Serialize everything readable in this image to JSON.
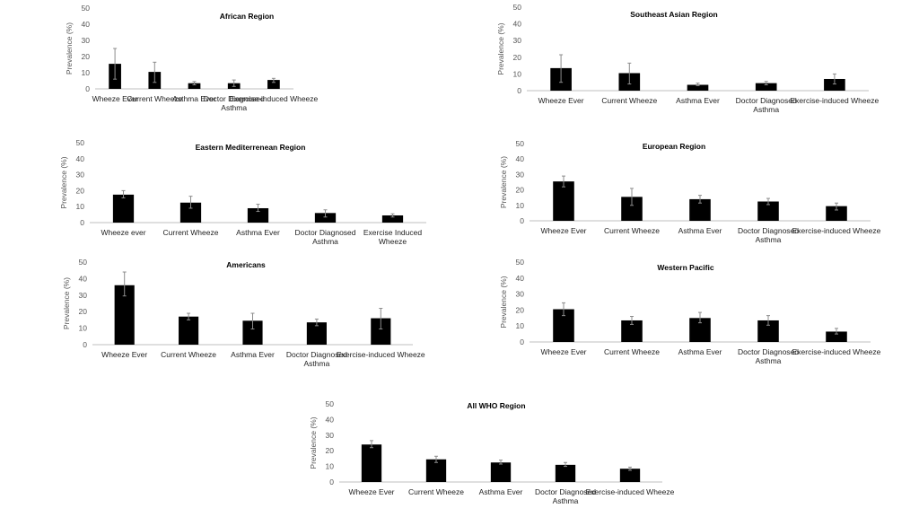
{
  "chart_data": [
    {
      "type": "bar",
      "title": "African Region",
      "ylabel": "Prevalence (%)",
      "xlabel": "",
      "ylim": [
        0,
        50
      ],
      "yticks": [
        "0",
        "10",
        "20",
        "30",
        "40",
        "50"
      ],
      "categories": [
        "Wheeze Ever",
        "Current Wheeze",
        "Asthma Ever",
        "Doctor Diagnosed Asthma",
        "Exercise-induced Wheeze"
      ],
      "values": [
        15.5,
        10.5,
        3.5,
        3.5,
        5.5
      ],
      "error_low": [
        6,
        4,
        2.5,
        1.5,
        4
      ],
      "error_high": [
        25,
        16.5,
        4.5,
        5.5,
        6.5
      ],
      "grid": false,
      "bar_color": "#000000"
    },
    {
      "type": "bar",
      "title": "Southeast Asian Region",
      "ylabel": "Prevalence (%)",
      "xlabel": "",
      "ylim": [
        0,
        50
      ],
      "yticks": [
        "0",
        "10",
        "20",
        "30",
        "40",
        "50"
      ],
      "categories": [
        "Wheeze Ever",
        "Current Wheeze",
        "Asthma Ever",
        "Doctor Diagnosed Asthma",
        "Exercise-induced Wheeze"
      ],
      "values": [
        13.5,
        10.5,
        3.5,
        4.5,
        7
      ],
      "error_low": [
        5,
        4,
        3,
        3.5,
        4
      ],
      "error_high": [
        21.5,
        16.5,
        4.5,
        5.5,
        10
      ],
      "grid": false,
      "bar_color": "#000000"
    },
    {
      "type": "bar",
      "title": "Eastern Mediterrenean Region",
      "ylabel": "Prevalence (%)",
      "xlabel": "",
      "ylim": [
        0,
        50
      ],
      "yticks": [
        "0",
        "10",
        "20",
        "30",
        "40",
        "50"
      ],
      "categories": [
        "Wheeze ever",
        "Current Wheeze",
        "Asthma Ever",
        "Doctor Diagnosed Asthma",
        "Exercise Induced Wheeze"
      ],
      "values": [
        17.5,
        12.5,
        9,
        6,
        4.5
      ],
      "error_low": [
        15.5,
        9,
        7,
        3.5,
        3.5
      ],
      "error_high": [
        20,
        16.5,
        11.5,
        8,
        5.5
      ],
      "grid": false,
      "bar_color": "#000000"
    },
    {
      "type": "bar",
      "title": "European Region",
      "ylabel": "Prevalence (%)",
      "xlabel": "",
      "ylim": [
        0,
        50
      ],
      "yticks": [
        "0",
        "10",
        "20",
        "30",
        "40",
        "50"
      ],
      "categories": [
        "Wheeze Ever",
        "Current Wheeze",
        "Asthma Ever",
        "Doctor Diagnosed Asthma",
        "Exercise-induced Wheeze"
      ],
      "values": [
        25.5,
        15.5,
        14,
        12.5,
        9.5
      ],
      "error_low": [
        22,
        10,
        11.5,
        10.5,
        7
      ],
      "error_high": [
        29,
        21,
        16.5,
        14.5,
        11.5
      ],
      "grid": false,
      "bar_color": "#000000"
    },
    {
      "type": "bar",
      "title": "Americans",
      "ylabel": "Prevalence (%)",
      "xlabel": "",
      "ylim": [
        0,
        50
      ],
      "yticks": [
        "0",
        "10",
        "20",
        "30",
        "40",
        "50"
      ],
      "categories": [
        "Wheeze Ever",
        "Current Wheeze",
        "Asthma Ever",
        "Doctor Diagnosed Asthma",
        "Exercise-induced Wheeze"
      ],
      "values": [
        36,
        17,
        14.5,
        13.5,
        16
      ],
      "error_low": [
        29.5,
        15,
        9.5,
        11.5,
        9.5
      ],
      "error_high": [
        44,
        19,
        19,
        15.5,
        22
      ],
      "grid": false,
      "bar_color": "#000000"
    },
    {
      "type": "bar",
      "title": "Western Pacific",
      "ylabel": "Prevalence (%)",
      "xlabel": "",
      "ylim": [
        0,
        50
      ],
      "yticks": [
        "0",
        "10",
        "20",
        "30",
        "40",
        "50"
      ],
      "categories": [
        "Wheeze Ever",
        "Current Wheeze",
        "Asthma Ever",
        "Doctor Diagnosed Asthma",
        "Exercise-induced Wheeze"
      ],
      "values": [
        20.5,
        13.5,
        15,
        13.5,
        6.5
      ],
      "error_low": [
        16.5,
        11,
        12,
        10.5,
        5
      ],
      "error_high": [
        24.5,
        16,
        18.5,
        16.5,
        8.5
      ],
      "grid": false,
      "bar_color": "#000000"
    },
    {
      "type": "bar",
      "title": "All WHO Region",
      "ylabel": "Prevalence (%)",
      "xlabel": "",
      "ylim": [
        0,
        50
      ],
      "yticks": [
        "0",
        "10",
        "20",
        "30",
        "40",
        "50"
      ],
      "categories": [
        "Wheeze Ever",
        "Current Wheeze",
        "Asthma Ever",
        "Doctor Diagnosed Asthma",
        "Exercise-induced Wheeze"
      ],
      "values": [
        24,
        14.5,
        12.5,
        11,
        8.5
      ],
      "error_low": [
        22,
        12.5,
        11.5,
        10,
        7.5
      ],
      "error_high": [
        26.5,
        16.5,
        14,
        12.5,
        9.5
      ],
      "grid": false,
      "bar_color": "#000000"
    }
  ]
}
